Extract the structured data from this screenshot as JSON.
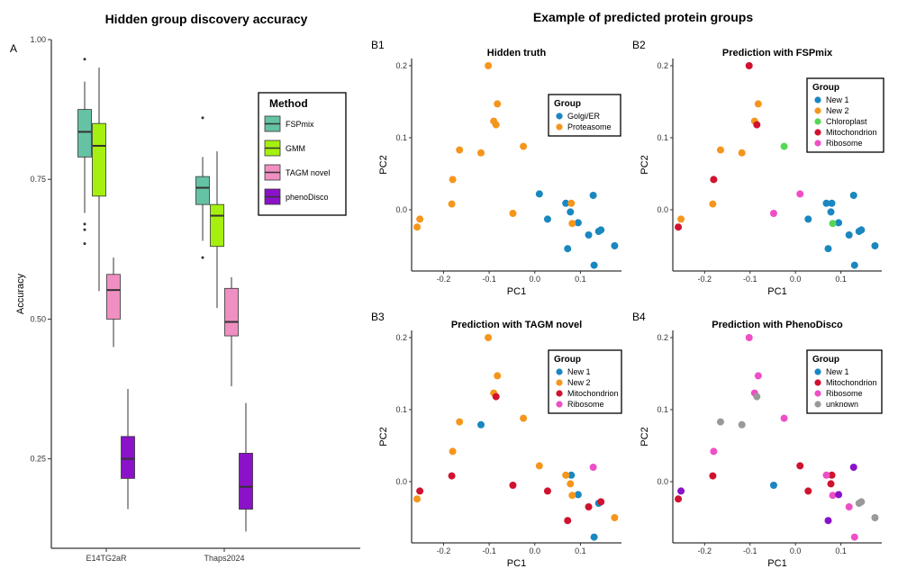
{
  "figure": {
    "left_title": "Hidden group discovery accuracy",
    "right_title": "Example of predicted protein groups"
  },
  "colors": {
    "FSPmix": "#66c2a5",
    "GMM": "#a6f00f",
    "TAGM novel": "#f08fc2",
    "phenoDisco": "#8b12c9",
    "Golgi/ER": "#1a87c0",
    "Proteasome": "#f5961c",
    "New 1": "#1a87c0",
    "New 2": "#f5961c",
    "Chloroplast": "#55d655",
    "Mitochondrion": "#d0122f",
    "Ribosome": "#ee4fc6",
    "unknown": "#999999"
  },
  "chart_data": [
    {
      "type": "box",
      "panel_label": "A",
      "title": "Hidden group discovery accuracy",
      "xlabel": "",
      "ylabel": "Accuracy",
      "categories": [
        "E14TG2aR",
        "Thaps2024"
      ],
      "ylim": [
        0.09,
        1.0
      ],
      "yticks": [
        0.25,
        0.5,
        0.75,
        1.0
      ],
      "ytick_labels": [
        "0.25",
        "0.50",
        "0.75",
        "1.00"
      ],
      "legend_title": "Method",
      "methods": [
        "FSPmix",
        "GMM",
        "TAGM novel",
        "phenoDisco"
      ],
      "boxes": [
        {
          "dataset": "E14TG2aR",
          "method": "FSPmix",
          "whisker_low": 0.69,
          "q1": 0.79,
          "median": 0.835,
          "q3": 0.875,
          "whisker_high": 0.925,
          "outliers": [
            0.965,
            0.67,
            0.66,
            0.635
          ]
        },
        {
          "dataset": "E14TG2aR",
          "method": "GMM",
          "whisker_low": 0.55,
          "q1": 0.72,
          "median": 0.81,
          "q3": 0.85,
          "whisker_high": 0.95,
          "outliers": []
        },
        {
          "dataset": "E14TG2aR",
          "method": "TAGM novel",
          "whisker_low": 0.45,
          "q1": 0.5,
          "median": 0.552,
          "q3": 0.58,
          "whisker_high": 0.61,
          "outliers": []
        },
        {
          "dataset": "E14TG2aR",
          "method": "phenoDisco",
          "whisker_low": 0.16,
          "q1": 0.215,
          "median": 0.25,
          "q3": 0.29,
          "whisker_high": 0.375,
          "outliers": []
        },
        {
          "dataset": "Thaps2024",
          "method": "FSPmix",
          "whisker_low": 0.64,
          "q1": 0.705,
          "median": 0.735,
          "q3": 0.755,
          "whisker_high": 0.79,
          "outliers": [
            0.86,
            0.61
          ]
        },
        {
          "dataset": "Thaps2024",
          "method": "GMM",
          "whisker_low": 0.52,
          "q1": 0.63,
          "median": 0.685,
          "q3": 0.705,
          "whisker_high": 0.8,
          "outliers": []
        },
        {
          "dataset": "Thaps2024",
          "method": "TAGM novel",
          "whisker_low": 0.38,
          "q1": 0.47,
          "median": 0.495,
          "q3": 0.555,
          "whisker_high": 0.575,
          "outliers": []
        },
        {
          "dataset": "Thaps2024",
          "method": "phenoDisco",
          "whisker_low": 0.12,
          "q1": 0.16,
          "median": 0.2,
          "q3": 0.26,
          "whisker_high": 0.35,
          "outliers": []
        }
      ]
    },
    {
      "type": "scatter",
      "panel_label": "B1",
      "title": "Hidden truth",
      "xlabel": "PC1",
      "ylabel": "PC2",
      "xlim": [
        -0.27,
        0.19
      ],
      "ylim": [
        -0.085,
        0.21
      ],
      "xticks": [
        -0.2,
        -0.1,
        0.0,
        0.1
      ],
      "yticks": [
        0.0,
        0.1,
        0.2
      ],
      "legend_title": "Group",
      "groups": [
        "Golgi/ER",
        "Proteasome"
      ],
      "points": [
        {
          "x": 0.01,
          "y": 0.022,
          "g": "Golgi/ER"
        },
        {
          "x": 0.028,
          "y": -0.013,
          "g": "Golgi/ER"
        },
        {
          "x": 0.068,
          "y": 0.009,
          "g": "Golgi/ER"
        },
        {
          "x": 0.078,
          "y": -0.003,
          "g": "Golgi/ER"
        },
        {
          "x": 0.095,
          "y": -0.018,
          "g": "Golgi/ER"
        },
        {
          "x": 0.118,
          "y": -0.035,
          "g": "Golgi/ER"
        },
        {
          "x": 0.128,
          "y": 0.02,
          "g": "Golgi/ER"
        },
        {
          "x": 0.14,
          "y": -0.03,
          "g": "Golgi/ER"
        },
        {
          "x": 0.145,
          "y": -0.028,
          "g": "Golgi/ER"
        },
        {
          "x": 0.175,
          "y": -0.05,
          "g": "Golgi/ER"
        },
        {
          "x": 0.072,
          "y": -0.054,
          "g": "Golgi/ER"
        },
        {
          "x": 0.13,
          "y": -0.077,
          "g": "Golgi/ER"
        },
        {
          "x": -0.102,
          "y": 0.2,
          "g": "Proteasome"
        },
        {
          "x": -0.082,
          "y": 0.147,
          "g": "Proteasome"
        },
        {
          "x": -0.09,
          "y": 0.123,
          "g": "Proteasome"
        },
        {
          "x": -0.085,
          "y": 0.118,
          "g": "Proteasome"
        },
        {
          "x": -0.165,
          "y": 0.083,
          "g": "Proteasome"
        },
        {
          "x": -0.118,
          "y": 0.079,
          "g": "Proteasome"
        },
        {
          "x": -0.025,
          "y": 0.088,
          "g": "Proteasome"
        },
        {
          "x": -0.18,
          "y": 0.042,
          "g": "Proteasome"
        },
        {
          "x": -0.182,
          "y": 0.008,
          "g": "Proteasome"
        },
        {
          "x": -0.048,
          "y": -0.005,
          "g": "Proteasome"
        },
        {
          "x": -0.252,
          "y": -0.013,
          "g": "Proteasome"
        },
        {
          "x": -0.258,
          "y": -0.024,
          "g": "Proteasome"
        },
        {
          "x": 0.08,
          "y": 0.009,
          "g": "Proteasome"
        },
        {
          "x": 0.082,
          "y": -0.019,
          "g": "Proteasome"
        }
      ]
    },
    {
      "type": "scatter",
      "panel_label": "B2",
      "title": "Prediction with FSPmix",
      "xlabel": "PC1",
      "ylabel": "PC2",
      "xlim": [
        -0.27,
        0.19
      ],
      "ylim": [
        -0.085,
        0.21
      ],
      "xticks": [
        -0.2,
        -0.1,
        0.0,
        0.1
      ],
      "yticks": [
        0.0,
        0.1,
        0.2
      ],
      "legend_title": "Group",
      "groups": [
        "New 1",
        "New 2",
        "Chloroplast",
        "Mitochondrion",
        "Ribosome"
      ],
      "points": [
        {
          "x": 0.028,
          "y": -0.013,
          "g": "New 1"
        },
        {
          "x": 0.068,
          "y": 0.009,
          "g": "New 1"
        },
        {
          "x": 0.08,
          "y": 0.009,
          "g": "New 1"
        },
        {
          "x": 0.078,
          "y": -0.003,
          "g": "New 1"
        },
        {
          "x": 0.095,
          "y": -0.018,
          "g": "New 1"
        },
        {
          "x": 0.118,
          "y": -0.035,
          "g": "New 1"
        },
        {
          "x": 0.128,
          "y": 0.02,
          "g": "New 1"
        },
        {
          "x": 0.14,
          "y": -0.03,
          "g": "New 1"
        },
        {
          "x": 0.145,
          "y": -0.028,
          "g": "New 1"
        },
        {
          "x": 0.175,
          "y": -0.05,
          "g": "New 1"
        },
        {
          "x": 0.072,
          "y": -0.054,
          "g": "New 1"
        },
        {
          "x": 0.13,
          "y": -0.077,
          "g": "New 1"
        },
        {
          "x": -0.082,
          "y": 0.147,
          "g": "New 2"
        },
        {
          "x": -0.09,
          "y": 0.123,
          "g": "New 2"
        },
        {
          "x": -0.165,
          "y": 0.083,
          "g": "New 2"
        },
        {
          "x": -0.118,
          "y": 0.079,
          "g": "New 2"
        },
        {
          "x": -0.182,
          "y": 0.008,
          "g": "New 2"
        },
        {
          "x": -0.252,
          "y": -0.013,
          "g": "New 2"
        },
        {
          "x": -0.025,
          "y": 0.088,
          "g": "Chloroplast"
        },
        {
          "x": 0.082,
          "y": -0.019,
          "g": "Chloroplast"
        },
        {
          "x": -0.102,
          "y": 0.2,
          "g": "Mitochondrion"
        },
        {
          "x": -0.085,
          "y": 0.118,
          "g": "Mitochondrion"
        },
        {
          "x": -0.18,
          "y": 0.042,
          "g": "Mitochondrion"
        },
        {
          "x": -0.258,
          "y": -0.024,
          "g": "Mitochondrion"
        },
        {
          "x": 0.01,
          "y": 0.022,
          "g": "Ribosome"
        },
        {
          "x": -0.048,
          "y": -0.005,
          "g": "Ribosome"
        }
      ]
    },
    {
      "type": "scatter",
      "panel_label": "B3",
      "title": "Prediction with TAGM novel",
      "xlabel": "PC1",
      "ylabel": "PC2",
      "xlim": [
        -0.27,
        0.19
      ],
      "ylim": [
        -0.085,
        0.21
      ],
      "xticks": [
        -0.2,
        -0.1,
        0.0,
        0.1
      ],
      "yticks": [
        0.0,
        0.1,
        0.2
      ],
      "legend_title": "Group",
      "groups": [
        "New 1",
        "New 2",
        "Mitochondrion",
        "Ribosome"
      ],
      "points": [
        {
          "x": -0.118,
          "y": 0.079,
          "g": "New 1"
        },
        {
          "x": 0.08,
          "y": 0.009,
          "g": "New 1"
        },
        {
          "x": 0.095,
          "y": -0.018,
          "g": "New 1"
        },
        {
          "x": 0.14,
          "y": -0.03,
          "g": "New 1"
        },
        {
          "x": 0.13,
          "y": -0.077,
          "g": "New 1"
        },
        {
          "x": -0.102,
          "y": 0.2,
          "g": "New 2"
        },
        {
          "x": -0.082,
          "y": 0.147,
          "g": "New 2"
        },
        {
          "x": -0.09,
          "y": 0.123,
          "g": "New 2"
        },
        {
          "x": -0.165,
          "y": 0.083,
          "g": "New 2"
        },
        {
          "x": -0.025,
          "y": 0.088,
          "g": "New 2"
        },
        {
          "x": -0.18,
          "y": 0.042,
          "g": "New 2"
        },
        {
          "x": 0.01,
          "y": 0.022,
          "g": "New 2"
        },
        {
          "x": 0.068,
          "y": 0.009,
          "g": "New 2"
        },
        {
          "x": 0.078,
          "y": -0.003,
          "g": "New 2"
        },
        {
          "x": 0.082,
          "y": -0.019,
          "g": "New 2"
        },
        {
          "x": 0.175,
          "y": -0.05,
          "g": "New 2"
        },
        {
          "x": -0.258,
          "y": -0.024,
          "g": "New 2"
        },
        {
          "x": -0.085,
          "y": 0.118,
          "g": "Mitochondrion"
        },
        {
          "x": -0.182,
          "y": 0.008,
          "g": "Mitochondrion"
        },
        {
          "x": -0.048,
          "y": -0.005,
          "g": "Mitochondrion"
        },
        {
          "x": -0.252,
          "y": -0.013,
          "g": "Mitochondrion"
        },
        {
          "x": 0.028,
          "y": -0.013,
          "g": "Mitochondrion"
        },
        {
          "x": 0.118,
          "y": -0.035,
          "g": "Mitochondrion"
        },
        {
          "x": 0.145,
          "y": -0.028,
          "g": "Mitochondrion"
        },
        {
          "x": 0.072,
          "y": -0.054,
          "g": "Mitochondrion"
        },
        {
          "x": 0.128,
          "y": 0.02,
          "g": "Ribosome"
        }
      ]
    },
    {
      "type": "scatter",
      "panel_label": "B4",
      "title": "Prediction with PhenoDisco",
      "xlabel": "PC1",
      "ylabel": "PC2",
      "xlim": [
        -0.27,
        0.19
      ],
      "ylim": [
        -0.085,
        0.21
      ],
      "xticks": [
        -0.2,
        -0.1,
        0.0,
        0.1
      ],
      "yticks": [
        0.0,
        0.1,
        0.2
      ],
      "legend_title": "Group",
      "groups": [
        "New 1",
        "Mitochondrion",
        "Ribosome",
        "unknown"
      ],
      "points": [
        {
          "x": -0.048,
          "y": -0.005,
          "g": "New 1"
        },
        {
          "x": -0.182,
          "y": 0.008,
          "g": "Mitochondrion"
        },
        {
          "x": 0.01,
          "y": 0.022,
          "g": "Mitochondrion"
        },
        {
          "x": 0.028,
          "y": -0.013,
          "g": "Mitochondrion"
        },
        {
          "x": 0.08,
          "y": 0.009,
          "g": "Mitochondrion"
        },
        {
          "x": 0.078,
          "y": -0.003,
          "g": "Mitochondrion"
        },
        {
          "x": -0.258,
          "y": -0.024,
          "g": "Mitochondrion"
        },
        {
          "x": -0.102,
          "y": 0.2,
          "g": "Ribosome"
        },
        {
          "x": -0.082,
          "y": 0.147,
          "g": "Ribosome"
        },
        {
          "x": -0.09,
          "y": 0.123,
          "g": "Ribosome"
        },
        {
          "x": -0.025,
          "y": 0.088,
          "g": "Ribosome"
        },
        {
          "x": -0.18,
          "y": 0.042,
          "g": "Ribosome"
        },
        {
          "x": 0.068,
          "y": 0.009,
          "g": "Ribosome"
        },
        {
          "x": 0.082,
          "y": -0.019,
          "g": "Ribosome"
        },
        {
          "x": 0.118,
          "y": -0.035,
          "g": "Ribosome"
        },
        {
          "x": 0.13,
          "y": -0.077,
          "g": "Ribosome"
        },
        {
          "x": 0.128,
          "y": 0.02,
          "g": "phenoDisco"
        },
        {
          "x": 0.095,
          "y": -0.018,
          "g": "phenoDisco"
        },
        {
          "x": -0.252,
          "y": -0.013,
          "g": "phenoDisco"
        },
        {
          "x": 0.072,
          "y": -0.054,
          "g": "phenoDisco"
        },
        {
          "x": -0.165,
          "y": 0.083,
          "g": "unknown"
        },
        {
          "x": -0.118,
          "y": 0.079,
          "g": "unknown"
        },
        {
          "x": -0.085,
          "y": 0.118,
          "g": "unknown"
        },
        {
          "x": 0.14,
          "y": -0.03,
          "g": "unknown"
        },
        {
          "x": 0.145,
          "y": -0.028,
          "g": "unknown"
        },
        {
          "x": 0.175,
          "y": -0.05,
          "g": "unknown"
        }
      ]
    }
  ]
}
